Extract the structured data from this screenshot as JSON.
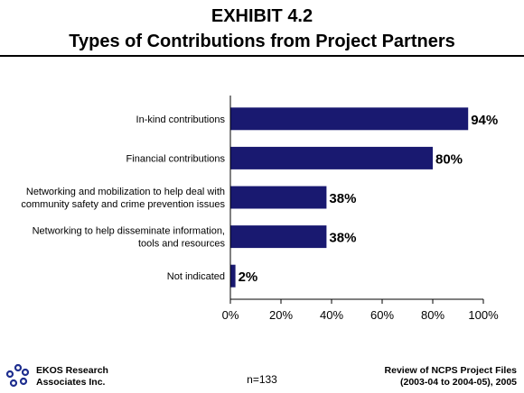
{
  "header": {
    "title_line1": "EXHIBIT 4.2",
    "title_line2": "Types of Contributions from Project Partners"
  },
  "chart_data": {
    "type": "bar",
    "orientation": "horizontal",
    "categories": [
      [
        "In-kind contributions"
      ],
      [
        "Financial contributions"
      ],
      [
        "Networking and mobilization to help deal with",
        "community safety and crime prevention issues"
      ],
      [
        "Networking to help disseminate information,",
        "tools and resources"
      ],
      [
        "Not indicated"
      ]
    ],
    "values": [
      94,
      80,
      38,
      38,
      2
    ],
    "value_labels": [
      "94%",
      "80%",
      "38%",
      "38%",
      "2%"
    ],
    "xlim": [
      0,
      100
    ],
    "xticks": [
      0,
      20,
      40,
      60,
      80,
      100
    ],
    "xtick_labels": [
      "0%",
      "20%",
      "40%",
      "60%",
      "80%",
      "100%"
    ],
    "bar_color": "#191970",
    "grid": false,
    "legend": "none"
  },
  "footer": {
    "company_line1": "EKOS Research",
    "company_line2": "Associates Inc.",
    "sample_note": "n=133",
    "source_line1": "Review of NCPS Project Files",
    "source_line2": "(2003-04 to 2004-05), 2005"
  },
  "logo": {
    "icon": "ekos-logo-icon",
    "color": "#1f2f8f"
  }
}
